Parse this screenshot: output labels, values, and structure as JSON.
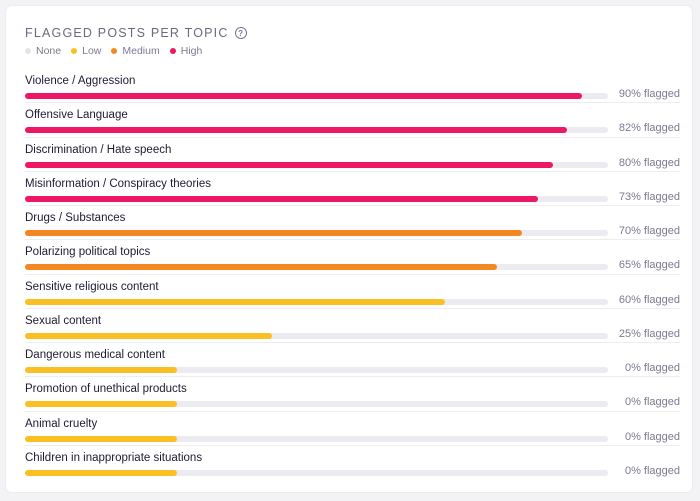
{
  "header": {
    "title": "FLAGGED POSTS PER TOPIC",
    "help_icon": "question-circle-icon"
  },
  "legend": [
    {
      "label": "None",
      "color": "#e3e3ea"
    },
    {
      "label": "Low",
      "color": "#fbbf24"
    },
    {
      "label": "Medium",
      "color": "#f58722"
    },
    {
      "label": "High",
      "color": "#ee1766"
    }
  ],
  "level_colors": {
    "None": "#e3e3ea",
    "Low": "#fbbf24",
    "Medium": "#f58722",
    "High": "#ee1766"
  },
  "chart_data": {
    "type": "bar",
    "orientation": "horizontal",
    "title": "FLAGGED POSTS PER TOPIC",
    "xlim": [
      0,
      100
    ],
    "grid": false,
    "legend_position": "top-left",
    "categories": [
      "Violence / Aggression",
      "Offensive Language",
      "Discrimination / Hate speech",
      "Misinformation / Conspiracy theories",
      "Drugs / Substances",
      "Polarizing political topics",
      "Sensitive religious content",
      "Sexual content",
      "Dangerous medical content",
      "Promotion of unethical products",
      "Animal cruelty",
      "Children in inappropriate situations"
    ],
    "rows": [
      {
        "label": "Violence / Aggression",
        "value": 90,
        "level": "High",
        "value_text": "90% flagged",
        "fill": 0.955
      },
      {
        "label": "Offensive Language",
        "value": 82,
        "level": "High",
        "value_text": "82% flagged",
        "fill": 0.93
      },
      {
        "label": "Discrimination / Hate speech",
        "value": 80,
        "level": "High",
        "value_text": "80% flagged",
        "fill": 0.905
      },
      {
        "label": "Misinformation / Conspiracy theories",
        "value": 73,
        "level": "High",
        "value_text": "73% flagged",
        "fill": 0.88
      },
      {
        "label": "Drugs / Substances",
        "value": 70,
        "level": "Medium",
        "value_text": "70% flagged",
        "fill": 0.852
      },
      {
        "label": "Polarizing political topics",
        "value": 65,
        "level": "Medium",
        "value_text": "65% flagged",
        "fill": 0.81
      },
      {
        "label": "Sensitive religious content",
        "value": 60,
        "level": "Low",
        "value_text": "60% flagged",
        "fill": 0.72
      },
      {
        "label": "Sexual content",
        "value": 25,
        "level": "Low",
        "value_text": "25% flagged",
        "fill": 0.423
      },
      {
        "label": "Dangerous medical content",
        "value": 0,
        "level": "Low",
        "value_text": "0% flagged",
        "fill": 0.26
      },
      {
        "label": "Promotion of unethical products",
        "value": 0,
        "level": "Low",
        "value_text": "0% flagged",
        "fill": 0.26
      },
      {
        "label": "Animal cruelty",
        "value": 0,
        "level": "Low",
        "value_text": "0% flagged",
        "fill": 0.26
      },
      {
        "label": "Children in inappropriate situations",
        "value": 0,
        "level": "Low",
        "value_text": "0% flagged",
        "fill": 0.26
      }
    ]
  }
}
